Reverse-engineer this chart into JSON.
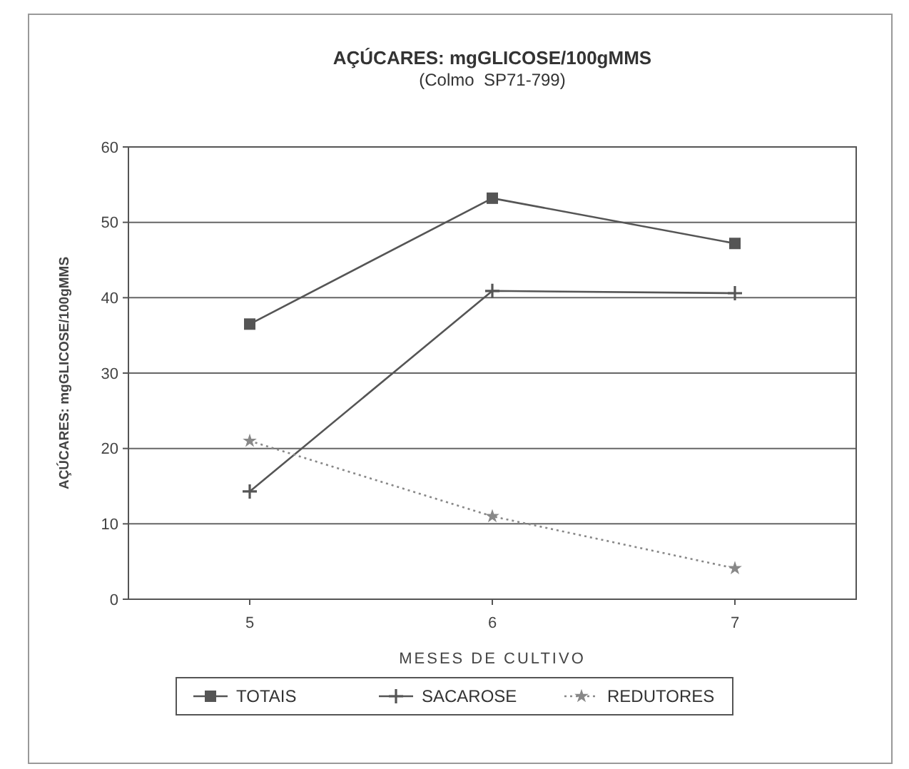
{
  "chart_data": {
    "type": "line",
    "title": "AÇÚCARES: mgGLICOSE/100gMMS",
    "subtitle": "(Colmo  SP71-799)",
    "xlabel": "MESES DE CULTIVO",
    "ylabel": "AÇÚCARES: mgGLICOSE/100gMMS",
    "x": [
      5,
      6,
      7
    ],
    "xlim": [
      4.5,
      7.5
    ],
    "xticks": [
      5,
      6,
      7
    ],
    "ylim": [
      0,
      60
    ],
    "yticks": [
      0,
      10,
      20,
      30,
      40,
      50,
      60
    ],
    "grid": "y",
    "legend": "bottom",
    "series": [
      {
        "name": "TOTAIS",
        "color": "#555555",
        "values": [
          36.5,
          53.2,
          47.2
        ],
        "marker": "square",
        "line_style": "solid"
      },
      {
        "name": "SACAROSE",
        "color": "#555555",
        "values": [
          14.3,
          40.9,
          40.6
        ],
        "marker": "cross",
        "line_style": "solid"
      },
      {
        "name": "REDUTORES",
        "color": "#888888",
        "values": [
          21.0,
          11.0,
          4.1
        ],
        "marker": "star",
        "line_style": "dotted"
      }
    ]
  }
}
